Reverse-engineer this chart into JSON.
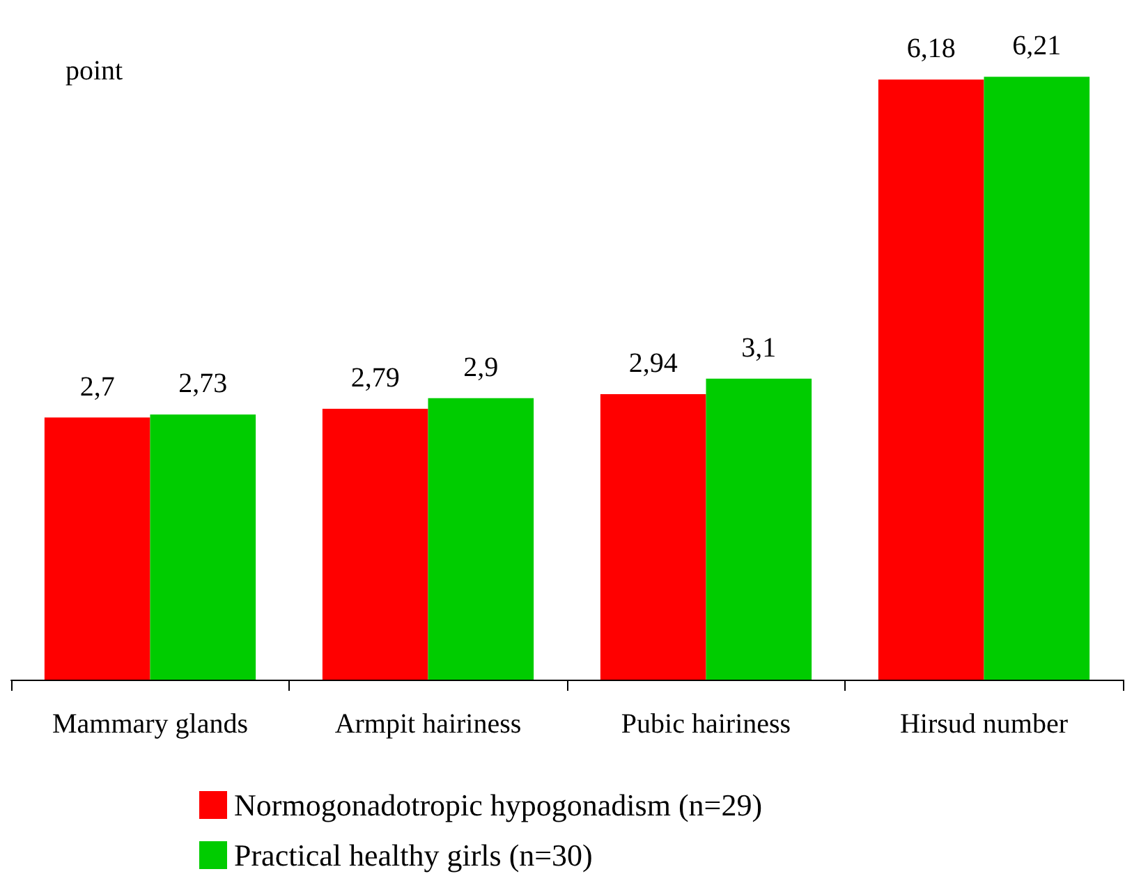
{
  "chart_data": {
    "type": "bar",
    "ylabel": "point",
    "categories": [
      "Mammary glands",
      "Armpit hairiness",
      "Pubic hairiness",
      "Hirsud number"
    ],
    "series": [
      {
        "name": "Normogonadotropic hypogonadism (n=29)",
        "color": "#ff0000",
        "values": [
          2.7,
          2.79,
          2.94,
          6.18
        ],
        "value_labels": [
          "2,7",
          "2,79",
          "2,94",
          "6,18"
        ]
      },
      {
        "name": "Practical healthy girls (n=30)",
        "color": "#00cc00",
        "values": [
          2.73,
          2.9,
          3.1,
          6.21
        ],
        "value_labels": [
          "2,73",
          "2,9",
          "3,1",
          "6,21"
        ]
      }
    ],
    "tick_labels": "x",
    "grid": false,
    "legend": "bottom"
  }
}
